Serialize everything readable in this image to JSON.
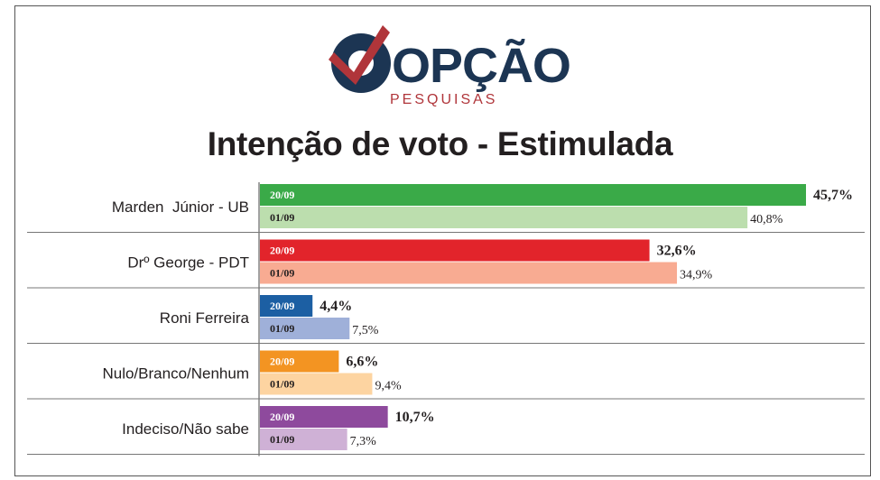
{
  "logo": {
    "word": "OPÇÃO",
    "sub": "PESQUISAS"
  },
  "title": "Intenção de voto - Estimulada",
  "colors": {
    "navy": "#1c3553",
    "red_logo": "#b0353a",
    "text": "#231f20"
  },
  "chart_data": {
    "type": "bar",
    "orientation": "horizontal",
    "title": "Intenção de voto - Estimulada",
    "unit": "%",
    "categories": [
      "Marden  Júnior - UB",
      "Drº George - PDT",
      "Roni Ferreira",
      "Nulo/Branco/Nenhum",
      "Indeciso/Não sabe"
    ],
    "series": [
      {
        "name": "20/09",
        "values": [
          45.7,
          32.6,
          4.4,
          6.6,
          10.7
        ],
        "labels": [
          "45,7%",
          "32,6%",
          "4,4%",
          "6,6%",
          "10,7%"
        ],
        "colors": [
          "#3aaa48",
          "#e2242b",
          "#1c5fa3",
          "#f39422",
          "#8e4a9d"
        ]
      },
      {
        "name": "01/09",
        "values": [
          40.8,
          34.9,
          7.5,
          9.4,
          7.3
        ],
        "labels": [
          "40,8%",
          "34,9%",
          "7,5%",
          "9,4%",
          "7,3%"
        ],
        "colors": [
          "#bcdeae",
          "#f8ab92",
          "#9fb0d9",
          "#fdd4a1",
          "#cfb1d6"
        ]
      }
    ],
    "xlim": [
      0,
      45.7
    ],
    "grid": false,
    "legend": "none"
  }
}
